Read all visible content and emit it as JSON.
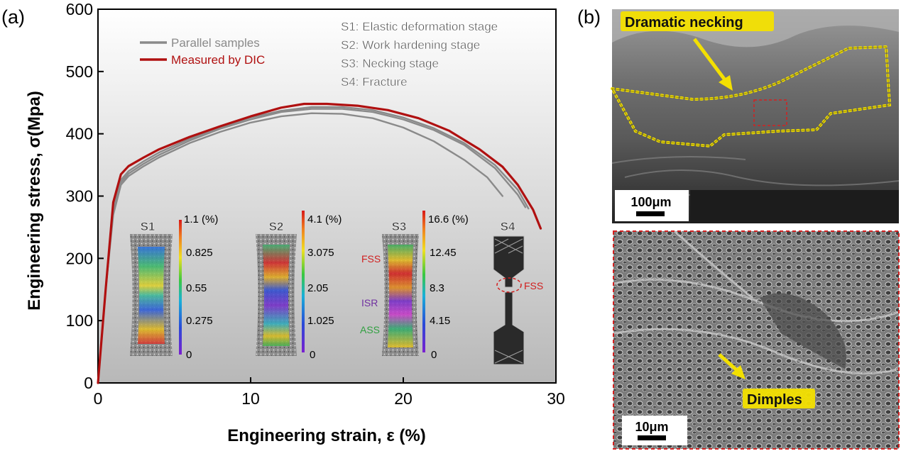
{
  "panel_a": {
    "label": "(a)",
    "legend": [
      "Parallel samples",
      "Measured by DIC"
    ],
    "stages": [
      "S1: Elastic deformation stage",
      "S2: Work hardening stage",
      "S3: Necking stage",
      "S4: Fracture"
    ],
    "insets": [
      {
        "title": "S1",
        "scale": [
          "1.1 (%)",
          "0.825",
          "0.55",
          "0.275",
          "0"
        ],
        "regions": []
      },
      {
        "title": "S2",
        "scale": [
          "4.1 (%)",
          "3.075",
          "2.05",
          "1.025",
          "0"
        ],
        "regions": []
      },
      {
        "title": "S3",
        "scale": [
          "16.6 (%)",
          "12.45",
          "8.3",
          "4.15",
          "0"
        ],
        "regions": [
          "FSS",
          "ISR",
          "ASS"
        ]
      },
      {
        "title": "S4",
        "scale": [],
        "regions": [
          "FSS"
        ]
      }
    ]
  },
  "panel_b": {
    "label": "(b)",
    "top_annotation": "Dramatic necking",
    "top_scalebar": "100μm",
    "bottom_annotation": "Dimples",
    "bottom_scalebar": "10μm"
  },
  "colors": {
    "dic": "#b01010",
    "parallel": "#8a8a8a",
    "highlight": "#f3e000",
    "dashed_box": "#d42020"
  },
  "chart_data": {
    "type": "line",
    "xlabel": "Engineering strain, ε (%)",
    "ylabel": "Engineering stress, σ(Mpa)",
    "xlim": [
      0,
      30
    ],
    "ylim": [
      0,
      600
    ],
    "xticks": [
      0,
      10,
      20,
      30
    ],
    "yticks": [
      0,
      100,
      200,
      300,
      400,
      500,
      600
    ],
    "grid": false,
    "legend_position": "top-left",
    "series": [
      {
        "name": "Measured by DIC",
        "color": "#b01010",
        "x": [
          0,
          0.5,
          1.0,
          1.5,
          2,
          3,
          4,
          6,
          8,
          10,
          12,
          13.5,
          15,
          17,
          19,
          21,
          23,
          25,
          26.5,
          27.5,
          28.5,
          29.0
        ],
        "y": [
          0,
          150,
          290,
          335,
          348,
          362,
          375,
          395,
          412,
          428,
          442,
          448,
          448,
          445,
          438,
          425,
          405,
          375,
          347,
          318,
          278,
          248
        ]
      },
      {
        "name": "Parallel samples",
        "color": "#8a8a8a",
        "x": [
          0,
          0.5,
          1.0,
          1.5,
          2,
          3,
          4,
          6,
          8,
          10,
          12,
          14,
          16,
          18,
          20,
          22,
          24,
          25.5,
          26.5
        ],
        "y": [
          0,
          150,
          270,
          318,
          332,
          348,
          362,
          385,
          403,
          418,
          428,
          433,
          432,
          425,
          410,
          388,
          358,
          330,
          300
        ]
      },
      {
        "name": "Parallel samples",
        "color": "#8a8a8a",
        "x": [
          0,
          0.5,
          1.0,
          1.5,
          2,
          3,
          4,
          6,
          8,
          10,
          12,
          14,
          16,
          18,
          20,
          22,
          24,
          26,
          27.5,
          28.0
        ],
        "y": [
          0,
          150,
          275,
          322,
          336,
          352,
          366,
          389,
          408,
          423,
          435,
          440,
          440,
          435,
          423,
          406,
          382,
          345,
          302,
          282
        ]
      },
      {
        "name": "Parallel samples",
        "color": "#8a8a8a",
        "x": [
          0,
          0.5,
          1.0,
          1.5,
          2,
          3,
          4,
          6,
          8,
          10,
          12,
          14,
          16,
          18,
          20,
          22,
          24,
          26,
          27.5,
          28.2
        ],
        "y": [
          0,
          150,
          280,
          326,
          340,
          356,
          370,
          392,
          410,
          426,
          437,
          443,
          443,
          438,
          426,
          409,
          385,
          350,
          310,
          280
        ]
      }
    ]
  }
}
